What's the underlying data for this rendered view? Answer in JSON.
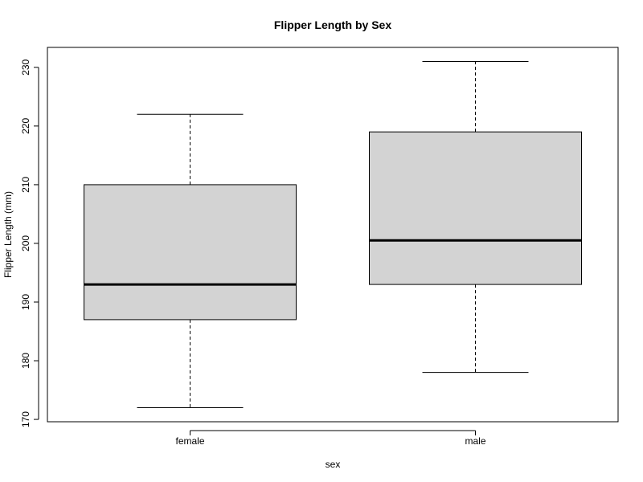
{
  "chart_data": {
    "type": "box",
    "title": "Flipper Length by Sex",
    "xlabel": "sex",
    "ylabel": "Flipper Length (mm)",
    "categories": [
      "female",
      "male"
    ],
    "boxes": [
      {
        "category": "female",
        "min": 172,
        "q1": 187,
        "median": 193,
        "q3": 210,
        "max": 222
      },
      {
        "category": "male",
        "min": 178,
        "q1": 193,
        "median": 200.5,
        "q3": 219,
        "max": 231
      }
    ],
    "yticks": [
      170,
      180,
      190,
      200,
      210,
      220,
      230
    ],
    "ylim": [
      169.6,
      233.4
    ],
    "grid": false,
    "colors": {
      "box_fill": "#d3d3d3",
      "stroke": "#000000"
    }
  }
}
